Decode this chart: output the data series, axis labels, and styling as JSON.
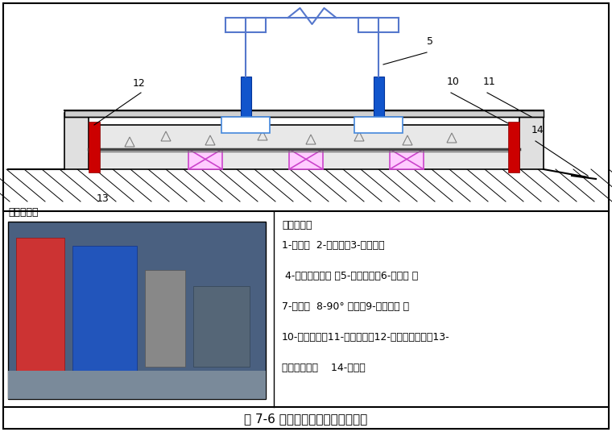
{
  "title": "图 7-6 立式水泵与管路连接示意图",
  "bg_color": "#ffffff",
  "bottom_left_label": "实施案例：",
  "symbol_title": "符号说明：",
  "symbol_lines": [
    "1-闸阀；  2-除污器；3-软接头；",
    " 4-压力表连旋塞 ；5-立式水泵；6-止回阀 ；",
    "7-支架；  8-90° 弯头；9-弹性吸架 ；",
    "10-浮动底座；11-隔离夹板；12-外部等级夹板；13-",
    "隔振橡胶帯；    14-地面；"
  ]
}
